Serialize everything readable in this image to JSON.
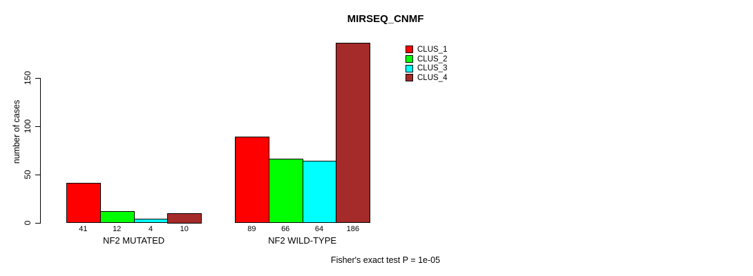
{
  "chart_data": {
    "type": "bar",
    "title": "MIRSEQ_CNMF",
    "ylabel": "number of cases",
    "xlabel": "",
    "ylim": [
      0,
      150
    ],
    "yticks": [
      0,
      50,
      100,
      150
    ],
    "grid": false,
    "legend_position": "top-right",
    "categories": [
      "NF2 MUTATED",
      "NF2 WILD-TYPE"
    ],
    "series": [
      {
        "name": "CLUS_1",
        "color": "#ff0000",
        "values": [
          41,
          89
        ]
      },
      {
        "name": "CLUS_2",
        "color": "#00ff00",
        "values": [
          12,
          66
        ]
      },
      {
        "name": "CLUS_3",
        "color": "#00ffff",
        "values": [
          4,
          64
        ]
      },
      {
        "name": "CLUS_4",
        "color": "#a52a2a",
        "values": [
          10,
          186
        ]
      }
    ],
    "bar_value_labels": [
      [
        41,
        12,
        4,
        10
      ],
      [
        89,
        66,
        64,
        186
      ]
    ],
    "annotation": "Fisher's exact test P = 1e-05"
  },
  "colors": {
    "background": "#ffffff",
    "axis": "#000000",
    "text": "#000000"
  }
}
